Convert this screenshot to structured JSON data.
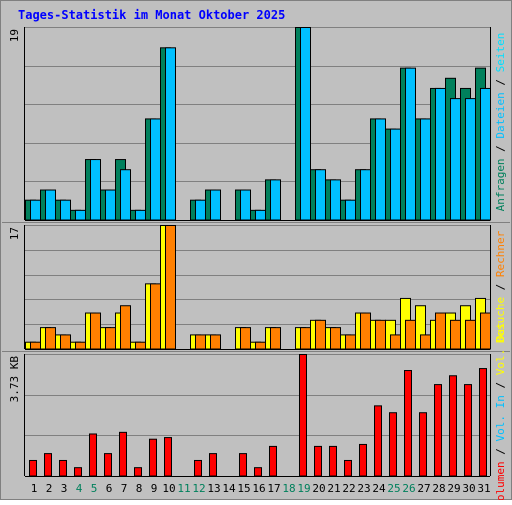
{
  "title": "Tages-Statistik im Monat Oktober 2025",
  "colors": {
    "background": "#c0c0c0",
    "title": "#0000ff",
    "grid": "#808080",
    "anfragen": "#00805c",
    "dateien": "#00c0ff",
    "seiten": "#00e0ff",
    "besuche": "#ffff00",
    "rechner": "#ff8000",
    "volumen_in": "#ff0000",
    "separator": "#808080",
    "weekend": "#00805c",
    "weekday": "#000000"
  },
  "chart_data": [
    {
      "type": "bar",
      "panel": "top",
      "ymax_label": "19",
      "ylim": [
        0,
        19
      ],
      "x": [
        1,
        2,
        3,
        4,
        5,
        6,
        7,
        8,
        9,
        10,
        11,
        12,
        13,
        14,
        15,
        16,
        17,
        18,
        19,
        20,
        21,
        22,
        23,
        24,
        25,
        26,
        27,
        28,
        29,
        30,
        31
      ],
      "legend": [
        {
          "text": "Anfragen",
          "color": "anfragen"
        },
        {
          "text": "Dateien",
          "color": "dateien"
        },
        {
          "text": "Seiten",
          "color": "seiten"
        }
      ],
      "series": [
        {
          "name": "Anfragen",
          "values": [
            2,
            3,
            2,
            1,
            6,
            3,
            6,
            1,
            10,
            17,
            0,
            2,
            3,
            0,
            3,
            1,
            4,
            0,
            19,
            5,
            4,
            2,
            5,
            10,
            9,
            15,
            10,
            13,
            14,
            13,
            15
          ]
        },
        {
          "name": "Dateien",
          "values": [
            2,
            3,
            2,
            1,
            6,
            3,
            5,
            1,
            10,
            17,
            0,
            2,
            3,
            0,
            3,
            1,
            4,
            0,
            19,
            5,
            4,
            2,
            5,
            10,
            9,
            15,
            10,
            13,
            12,
            12,
            13
          ]
        }
      ]
    },
    {
      "type": "bar",
      "panel": "middle",
      "ymax_label": "17",
      "ylim": [
        0,
        17
      ],
      "x": [
        1,
        2,
        3,
        4,
        5,
        6,
        7,
        8,
        9,
        10,
        11,
        12,
        13,
        14,
        15,
        16,
        17,
        18,
        19,
        20,
        21,
        22,
        23,
        24,
        25,
        26,
        27,
        28,
        29,
        30,
        31
      ],
      "legend": [
        {
          "text": "Besuche",
          "color": "besuche"
        },
        {
          "text": "Rechner",
          "color": "rechner"
        }
      ],
      "series": [
        {
          "name": "Besuche",
          "values": [
            1,
            3,
            2,
            1,
            5,
            3,
            5,
            1,
            9,
            17,
            0,
            2,
            2,
            0,
            3,
            1,
            3,
            0,
            3,
            4,
            3,
            2,
            5,
            4,
            4,
            7,
            6,
            4,
            5,
            6,
            7
          ]
        },
        {
          "name": "Rechner",
          "values": [
            1,
            3,
            2,
            1,
            5,
            3,
            6,
            1,
            9,
            17,
            0,
            2,
            2,
            0,
            3,
            1,
            3,
            0,
            3,
            4,
            3,
            2,
            5,
            4,
            2,
            4,
            2,
            5,
            4,
            4,
            5
          ]
        }
      ]
    },
    {
      "type": "bar",
      "panel": "bottom",
      "ymax_label": "3.73 KB",
      "ylim": [
        0,
        3.73
      ],
      "x": [
        1,
        2,
        3,
        4,
        5,
        6,
        7,
        8,
        9,
        10,
        11,
        12,
        13,
        14,
        15,
        16,
        17,
        18,
        19,
        20,
        21,
        22,
        23,
        24,
        25,
        26,
        27,
        28,
        29,
        30,
        31
      ],
      "legend": [
        {
          "text": "Volumen",
          "color": "volumen_in"
        },
        {
          "text": "Vol. In",
          "color": "dateien"
        },
        {
          "text": "Vol. Out",
          "color": "besuche"
        }
      ],
      "series": [
        {
          "name": "Volumen",
          "values": [
            0.49,
            0.7,
            0.49,
            0.27,
            1.3,
            0.7,
            1.35,
            0.27,
            1.14,
            1.19,
            0,
            0.49,
            0.7,
            0,
            0.7,
            0.27,
            0.92,
            0,
            3.73,
            0.92,
            0.92,
            0.49,
            0.98,
            2.16,
            1.95,
            3.24,
            1.95,
            2.81,
            3.08,
            2.81,
            3.3
          ]
        }
      ]
    }
  ],
  "x_labels": [
    {
      "d": "1",
      "w": false
    },
    {
      "d": "2",
      "w": false
    },
    {
      "d": "3",
      "w": false
    },
    {
      "d": "4",
      "w": true
    },
    {
      "d": "5",
      "w": true
    },
    {
      "d": "6",
      "w": false
    },
    {
      "d": "7",
      "w": false
    },
    {
      "d": "8",
      "w": false
    },
    {
      "d": "9",
      "w": false
    },
    {
      "d": "10",
      "w": false
    },
    {
      "d": "11",
      "w": true
    },
    {
      "d": "12",
      "w": true
    },
    {
      "d": "13",
      "w": false
    },
    {
      "d": "14",
      "w": false
    },
    {
      "d": "15",
      "w": false
    },
    {
      "d": "16",
      "w": false
    },
    {
      "d": "17",
      "w": false
    },
    {
      "d": "18",
      "w": true
    },
    {
      "d": "19",
      "w": true
    },
    {
      "d": "20",
      "w": false
    },
    {
      "d": "21",
      "w": false
    },
    {
      "d": "22",
      "w": false
    },
    {
      "d": "23",
      "w": false
    },
    {
      "d": "24",
      "w": false
    },
    {
      "d": "25",
      "w": true
    },
    {
      "d": "26",
      "w": true
    },
    {
      "d": "27",
      "w": false
    },
    {
      "d": "28",
      "w": false
    },
    {
      "d": "29",
      "w": false
    },
    {
      "d": "30",
      "w": false
    },
    {
      "d": "31",
      "w": false
    }
  ]
}
